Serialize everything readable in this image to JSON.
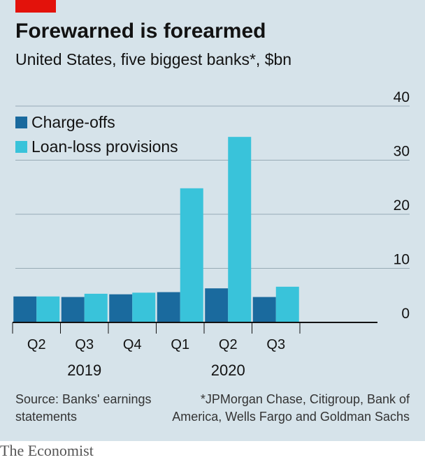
{
  "header": {
    "title": "Forewarned is forearmed",
    "subtitle": "United States, five biggest banks*, $bn"
  },
  "legend": {
    "items": [
      {
        "label": "Charge-offs",
        "color": "#1a6a9e"
      },
      {
        "label": "Loan-loss provisions",
        "color": "#39c3da"
      }
    ]
  },
  "chart_data": {
    "type": "bar",
    "categories": [
      "Q2",
      "Q3",
      "Q4",
      "Q1",
      "Q2",
      "Q3"
    ],
    "year_groups": [
      {
        "label": "2019",
        "categories": [
          0,
          1,
          2
        ]
      },
      {
        "label": "2020",
        "categories": [
          3,
          4,
          5
        ]
      }
    ],
    "series": [
      {
        "name": "Charge-offs",
        "color": "#1a6a9e",
        "values": [
          4.8,
          4.7,
          5.2,
          5.6,
          6.3,
          4.7
        ]
      },
      {
        "name": "Loan-loss provisions",
        "color": "#39c3da",
        "values": [
          4.8,
          5.3,
          5.5,
          24.8,
          34.3,
          6.6
        ]
      }
    ],
    "ylim": [
      0,
      40
    ],
    "yticks": [
      0,
      10,
      20,
      30,
      40
    ],
    "ytick_labels": [
      "0",
      "10",
      "20",
      "30",
      "40"
    ],
    "yaxis_position": "right",
    "grid": true,
    "legend_position": "top-left"
  },
  "footer": {
    "source": "Source: Banks' earnings statements",
    "footnote": "*JPMorgan Chase, Citigroup, Bank of America, Wells Fargo and Goldman Sachs",
    "brand": "The Economist"
  }
}
